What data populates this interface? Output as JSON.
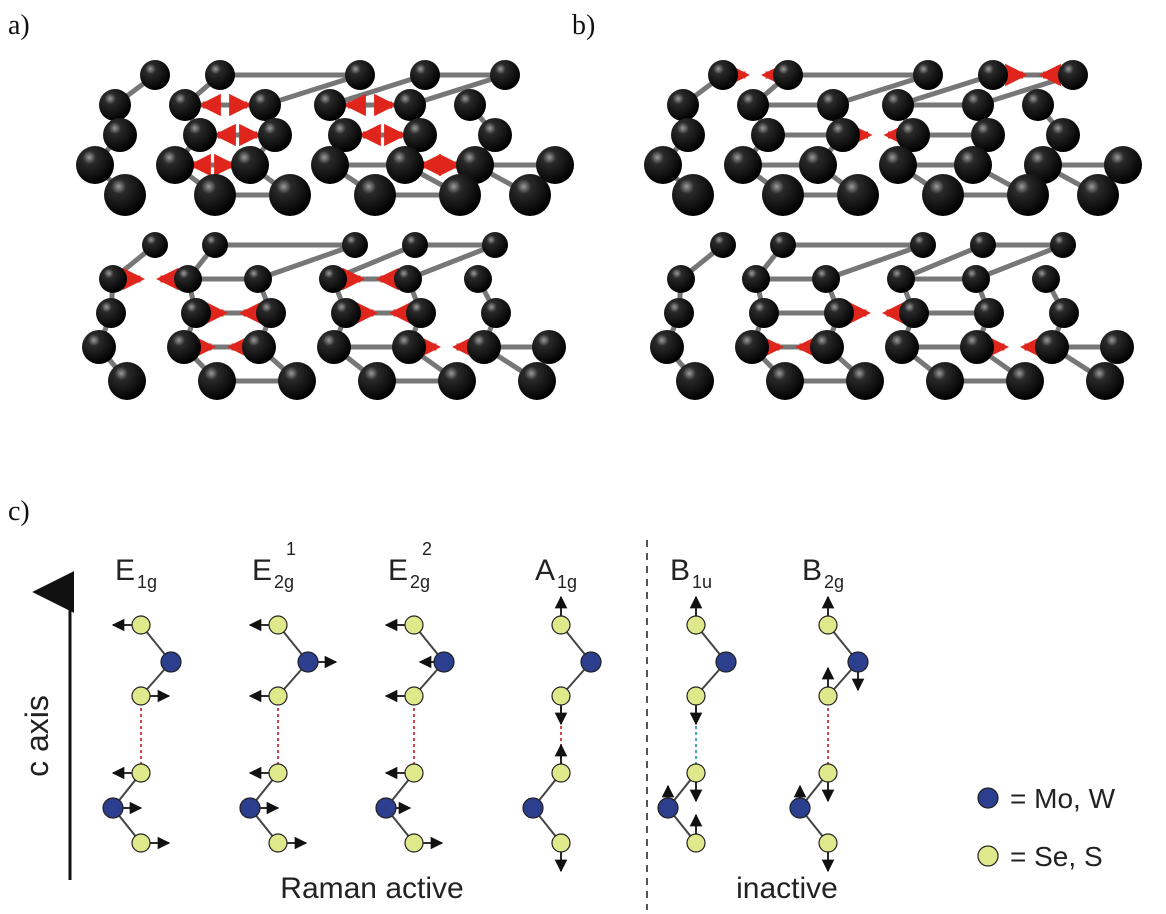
{
  "panels": {
    "a": "a)",
    "b": "b)",
    "c": "c)"
  },
  "axis": {
    "label": "c axis"
  },
  "modes": [
    {
      "main": "E",
      "sub": "1g",
      "sup": ""
    },
    {
      "main": "E",
      "sub": "2g",
      "sup": "1"
    },
    {
      "main": "E",
      "sub": "2g",
      "sup": "2"
    },
    {
      "main": "A",
      "sub": "1g",
      "sup": ""
    },
    {
      "main": "B",
      "sub": "1u",
      "sup": ""
    },
    {
      "main": "B",
      "sub": "2g",
      "sup": ""
    }
  ],
  "captions": {
    "active": "Raman active",
    "inactive": "inactive"
  },
  "legend": [
    {
      "text": "= Mo, W",
      "color": "#2c3f8f"
    },
    {
      "text": "= Se, S",
      "color": "#dfe88a"
    }
  ],
  "colors": {
    "atom_dark": "#111111",
    "arrow_red": "#e0261c",
    "bond_gray": "#777777",
    "metal": "#2c3f8f",
    "chalcogen": "#dfe88a",
    "interlayer": "#cc3333",
    "interlayer_alt": "#33a0a0"
  }
}
